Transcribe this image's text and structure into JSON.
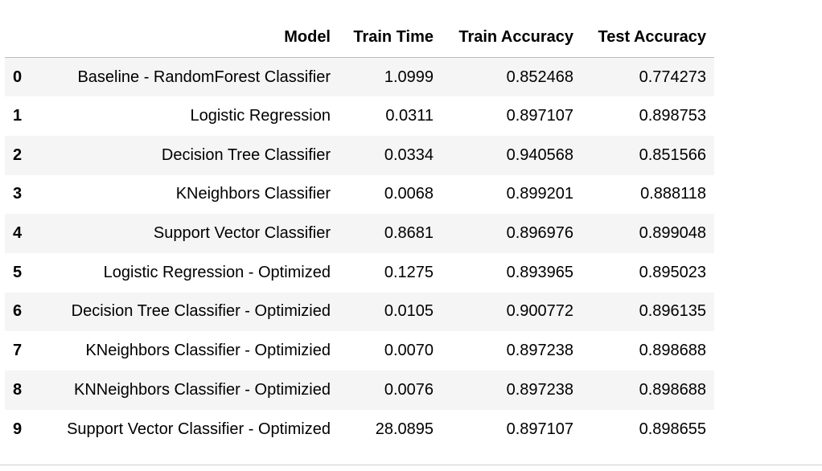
{
  "table": {
    "columns": [
      "",
      "Model",
      "Train Time",
      "Train Accuracy",
      "Test Accuracy"
    ],
    "rows": [
      {
        "index": "0",
        "model": "Baseline - RandomForest Classifier",
        "train_time": "1.0999",
        "train_acc": "0.852468",
        "test_acc": "0.774273"
      },
      {
        "index": "1",
        "model": "Logistic Regression",
        "train_time": "0.0311",
        "train_acc": "0.897107",
        "test_acc": "0.898753"
      },
      {
        "index": "2",
        "model": "Decision Tree Classifier",
        "train_time": "0.0334",
        "train_acc": "0.940568",
        "test_acc": "0.851566"
      },
      {
        "index": "3",
        "model": "KNeighbors Classifier",
        "train_time": "0.0068",
        "train_acc": "0.899201",
        "test_acc": "0.888118"
      },
      {
        "index": "4",
        "model": "Support Vector Classifier",
        "train_time": "0.8681",
        "train_acc": "0.896976",
        "test_acc": "0.899048"
      },
      {
        "index": "5",
        "model": "Logistic Regression - Optimized",
        "train_time": "0.1275",
        "train_acc": "0.893965",
        "test_acc": "0.895023"
      },
      {
        "index": "6",
        "model": "Decision Tree Classifier - Optimizied",
        "train_time": "0.0105",
        "train_acc": "0.900772",
        "test_acc": "0.896135"
      },
      {
        "index": "7",
        "model": "KNeighbors Classifier - Optimizied",
        "train_time": "0.0070",
        "train_acc": "0.897238",
        "test_acc": "0.898688"
      },
      {
        "index": "8",
        "model": "KNNeighbors Classifier - Optimizied",
        "train_time": "0.0076",
        "train_acc": "0.897238",
        "test_acc": "0.898688"
      },
      {
        "index": "9",
        "model": "Support Vector Classifier - Optimized",
        "train_time": "28.0895",
        "train_acc": "0.897107",
        "test_acc": "0.898655"
      }
    ]
  },
  "colors": {
    "stripe": "#f5f5f5",
    "header_rule": "#bdbdbd",
    "text": "#000000"
  }
}
